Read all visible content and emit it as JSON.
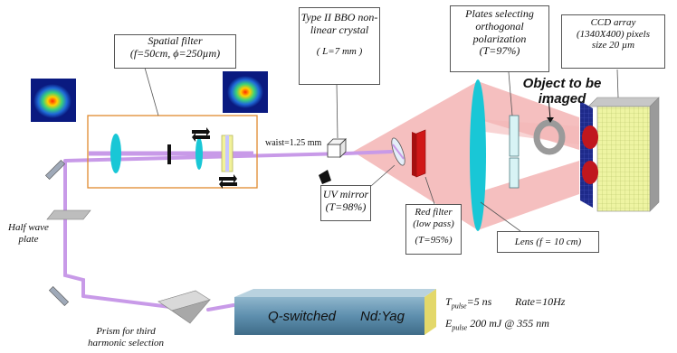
{
  "labels": {
    "spatial_filter_line1": "Spatial filter",
    "spatial_filter_line2": "(f=50cm, ϕ=250µm)",
    "bbo_line1": "Type II BBO non-",
    "bbo_line2": "linear crystal",
    "bbo_line3": "( L=7 mm )",
    "plates_line1": "Plates selecting",
    "plates_line2": "orthogonal",
    "plates_line3": "polarization",
    "plates_line4": "(T=97%)",
    "ccd_line1": "CCD array",
    "ccd_line2": "(1340X400) pixels",
    "ccd_line3": "size 20 µm",
    "object_line1": "Object to be",
    "object_line2": "imaged",
    "waist": "waist=1.25 mm",
    "uv_mirror_line1": "UV mirror",
    "uv_mirror_line2": "(T=98%)",
    "red_filter_line1": "Red filter",
    "red_filter_line2": "(low pass)",
    "red_filter_line3": "(T=95%)",
    "lens": "Lens (f = 10 cm)",
    "half_wave_line1": "Half wave",
    "half_wave_line2": "plate",
    "prism_line1": "Prism for third",
    "prism_line2": "harmonic selection",
    "laser_name": "Q-switched",
    "laser_type": "Nd:Yag",
    "t_pulse": "T",
    "t_pulse_sub": "pulse",
    "t_pulse_val": "=5 ns",
    "rate": "Rate=10Hz",
    "e_pulse": "E",
    "e_pulse_sub": "pulse",
    "e_pulse_val": "200 mJ @ 355 nm"
  },
  "colors": {
    "uv_beam": "#c89ae8",
    "red_beam": "#f3b3b3",
    "filter_box": "#e08a2e",
    "lens": "#19c7d6",
    "red_filter": "#d01818",
    "ccd": "#f0f5a8",
    "ccd_front": "#1e2a8a",
    "laser_body": "#5e8fae"
  }
}
